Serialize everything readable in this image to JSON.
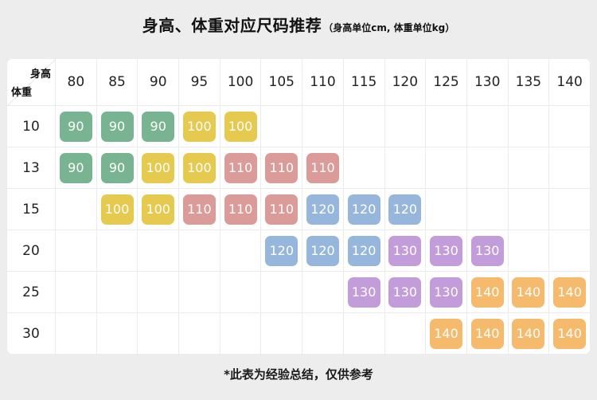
{
  "title": "身高、体重对应尺码推荐",
  "subtitle": "（身高单位cm, 体重单位kg）",
  "footer_note": "*此表为经验总结，仅供参考",
  "corner": {
    "height_label": "身高",
    "weight_label": "体重"
  },
  "chart_data": {
    "type": "table",
    "title": "身高、体重对应尺码推荐",
    "column_header_meaning": "身高(cm)",
    "row_header_meaning": "体重(kg)",
    "columns": [
      "80",
      "85",
      "90",
      "95",
      "100",
      "105",
      "110",
      "115",
      "120",
      "125",
      "130",
      "135",
      "140"
    ],
    "rows": [
      {
        "weight": "10",
        "cells": [
          "90",
          "90",
          "90",
          "100",
          "100",
          null,
          null,
          null,
          null,
          null,
          null,
          null,
          null
        ]
      },
      {
        "weight": "13",
        "cells": [
          "90",
          "90",
          "100",
          "100",
          "110",
          "110",
          "110",
          null,
          null,
          null,
          null,
          null,
          null
        ]
      },
      {
        "weight": "15",
        "cells": [
          null,
          "100",
          "100",
          "110",
          "110",
          "110",
          "120",
          "120",
          "120",
          null,
          null,
          null,
          null
        ]
      },
      {
        "weight": "20",
        "cells": [
          null,
          null,
          null,
          null,
          null,
          "120",
          "120",
          "120",
          "130",
          "130",
          "130",
          null,
          null
        ]
      },
      {
        "weight": "25",
        "cells": [
          null,
          null,
          null,
          null,
          null,
          null,
          null,
          "130",
          "130",
          "130",
          "140",
          "140",
          "140"
        ]
      },
      {
        "weight": "30",
        "cells": [
          null,
          null,
          null,
          null,
          null,
          null,
          null,
          null,
          null,
          "140",
          "140",
          "140",
          "140"
        ]
      }
    ],
    "size_colors": {
      "90": "#79b492",
      "100": "#e6c94f",
      "110": "#db9b98",
      "120": "#96b7db",
      "130": "#c39cda",
      "140": "#f6ba6d"
    }
  }
}
